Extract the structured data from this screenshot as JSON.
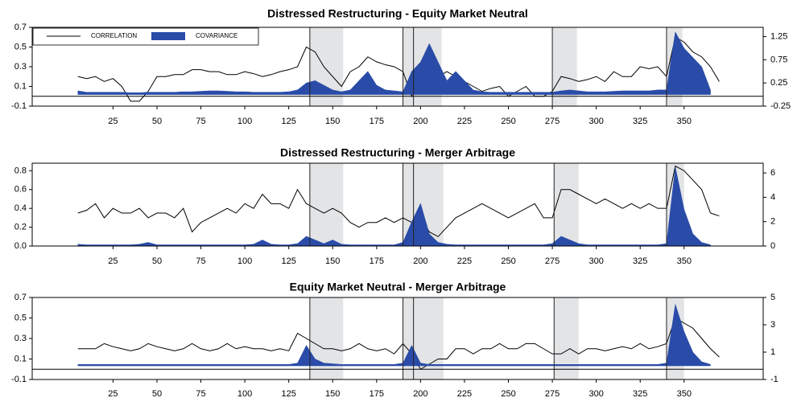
{
  "chart_data": [
    {
      "type": "line",
      "title": "Distressed Restructuring - Equity Market Neutral",
      "legend": "upper left",
      "x": [
        5,
        10,
        15,
        20,
        25,
        30,
        35,
        40,
        45,
        50,
        55,
        60,
        65,
        70,
        75,
        80,
        85,
        90,
        95,
        100,
        105,
        110,
        115,
        120,
        125,
        130,
        135,
        140,
        145,
        150,
        155,
        160,
        165,
        170,
        175,
        180,
        185,
        190,
        195,
        200,
        205,
        210,
        215,
        220,
        225,
        230,
        235,
        240,
        245,
        250,
        255,
        260,
        265,
        270,
        275,
        280,
        285,
        290,
        295,
        300,
        305,
        310,
        315,
        320,
        325,
        330,
        335,
        340,
        345,
        350,
        355,
        360,
        365,
        370
      ],
      "xlim": [
        -21,
        395
      ],
      "xticks": [
        25,
        50,
        75,
        100,
        125,
        150,
        175,
        200,
        225,
        250,
        275,
        300,
        325,
        350
      ],
      "ylim": [
        -0.1,
        0.7
      ],
      "yticks": [
        -0.1,
        0.1,
        0.3,
        0.5,
        0.7
      ],
      "y2lim": [
        -0.25,
        1.45
      ],
      "y2ticks": [
        -0.25,
        0.25,
        0.75,
        1.25
      ],
      "event_lines": [
        137,
        190,
        196,
        275,
        340
      ],
      "shaded_regions": [
        [
          137,
          156
        ],
        [
          190,
          212
        ],
        [
          275,
          289
        ],
        [
          340,
          349
        ]
      ],
      "series": [
        {
          "name": "CORRELATION",
          "color": "#000000",
          "values": [
            0.2,
            0.18,
            0.2,
            0.15,
            0.18,
            0.1,
            -0.05,
            -0.05,
            0.05,
            0.2,
            0.2,
            0.22,
            0.22,
            0.27,
            0.27,
            0.25,
            0.25,
            0.22,
            0.22,
            0.25,
            0.23,
            0.2,
            0.22,
            0.25,
            0.27,
            0.3,
            0.5,
            0.45,
            0.3,
            0.2,
            0.1,
            0.25,
            0.3,
            0.4,
            0.35,
            0.32,
            0.3,
            0.25,
            0.0,
            0.3,
            0.25,
            0.2,
            0.25,
            0.2,
            0.15,
            0.1,
            0.05,
            0.08,
            0.1,
            0.0,
            0.05,
            0.1,
            0.0,
            0.0,
            0.05,
            0.2,
            0.18,
            0.15,
            0.17,
            0.2,
            0.15,
            0.25,
            0.2,
            0.2,
            0.3,
            0.28,
            0.3,
            0.2,
            0.6,
            0.55,
            0.45,
            0.4,
            0.3,
            0.15
          ]
        },
        {
          "name": "COVARIANCE",
          "color": "#2a4ca8",
          "axis": "y2",
          "kind": "area",
          "values": [
            0.08,
            0.05,
            0.05,
            0.05,
            0.05,
            0.05,
            0.04,
            0.04,
            0.05,
            0.05,
            0.05,
            0.05,
            0.06,
            0.06,
            0.07,
            0.08,
            0.08,
            0.07,
            0.06,
            0.06,
            0.05,
            0.05,
            0.05,
            0.05,
            0.06,
            0.1,
            0.25,
            0.3,
            0.2,
            0.1,
            0.06,
            0.1,
            0.3,
            0.5,
            0.2,
            0.1,
            0.08,
            0.06,
            0.5,
            0.7,
            1.1,
            0.7,
            0.3,
            0.5,
            0.3,
            0.1,
            0.06,
            0.05,
            0.05,
            0.05,
            0.05,
            0.05,
            0.05,
            0.05,
            0.05,
            0.08,
            0.1,
            0.08,
            0.06,
            0.06,
            0.06,
            0.07,
            0.08,
            0.08,
            0.08,
            0.08,
            0.1,
            0.1,
            1.35,
            1.0,
            0.8,
            0.6,
            0.1,
            null
          ]
        }
      ]
    },
    {
      "type": "line",
      "title": "Distressed Restructuring - Merger Arbitrage",
      "x": [
        5,
        10,
        15,
        20,
        25,
        30,
        35,
        40,
        45,
        50,
        55,
        60,
        65,
        70,
        75,
        80,
        85,
        90,
        95,
        100,
        105,
        110,
        115,
        120,
        125,
        130,
        135,
        140,
        145,
        150,
        155,
        160,
        165,
        170,
        175,
        180,
        185,
        190,
        195,
        200,
        205,
        210,
        215,
        220,
        225,
        230,
        235,
        240,
        245,
        250,
        255,
        260,
        265,
        270,
        275,
        280,
        285,
        290,
        295,
        300,
        305,
        310,
        315,
        320,
        325,
        330,
        335,
        340,
        345,
        350,
        355,
        360,
        365,
        370
      ],
      "xlim": [
        -21,
        395
      ],
      "xticks": [
        25,
        50,
        75,
        100,
        125,
        150,
        175,
        200,
        225,
        250,
        275,
        300,
        325,
        350
      ],
      "ylim": [
        0,
        0.88
      ],
      "yticks": [
        {
          "value": 0,
          "label": "0.0"
        },
        0.2,
        0.4,
        0.6,
        0.8
      ],
      "y2lim": [
        0,
        6.8
      ],
      "y2ticks": [
        0,
        2,
        4,
        6
      ],
      "event_lines": [
        137,
        190,
        196,
        276,
        340
      ],
      "shaded_regions": [
        [
          137,
          156
        ],
        [
          190,
          213
        ],
        [
          276,
          290
        ],
        [
          340,
          350
        ]
      ],
      "series": [
        {
          "color": "#000000",
          "values": [
            0.35,
            0.38,
            0.45,
            0.3,
            0.4,
            0.35,
            0.35,
            0.4,
            0.3,
            0.35,
            0.35,
            0.3,
            0.4,
            0.15,
            0.25,
            0.3,
            0.35,
            0.4,
            0.35,
            0.45,
            0.4,
            0.55,
            0.45,
            0.45,
            0.4,
            0.6,
            0.45,
            0.4,
            0.35,
            0.4,
            0.35,
            0.25,
            0.2,
            0.25,
            0.25,
            0.3,
            0.25,
            0.3,
            0.25,
            0.3,
            0.15,
            0.1,
            0.2,
            0.3,
            0.35,
            0.4,
            0.45,
            0.4,
            0.35,
            0.3,
            0.35,
            0.4,
            0.45,
            0.3,
            0.3,
            0.6,
            0.6,
            0.55,
            0.5,
            0.45,
            0.5,
            0.45,
            0.4,
            0.45,
            0.4,
            0.45,
            0.4,
            0.4,
            0.85,
            0.8,
            0.7,
            0.6,
            0.35,
            0.32
          ]
        },
        {
          "color": "#2a4ca8",
          "axis": "y2",
          "kind": "area",
          "values": [
            0.15,
            0.1,
            0.1,
            0.1,
            0.1,
            0.1,
            0.1,
            0.15,
            0.3,
            0.1,
            0.1,
            0.1,
            0.1,
            0.1,
            0.1,
            0.1,
            0.1,
            0.1,
            0.1,
            0.1,
            0.15,
            0.5,
            0.15,
            0.1,
            0.1,
            0.2,
            0.8,
            0.5,
            0.2,
            0.5,
            0.15,
            0.1,
            0.1,
            0.1,
            0.1,
            0.1,
            0.1,
            0.3,
            2.0,
            3.5,
            1.0,
            0.3,
            0.15,
            0.1,
            0.1,
            0.1,
            0.1,
            0.1,
            0.1,
            0.1,
            0.1,
            0.1,
            0.1,
            0.1,
            0.2,
            0.8,
            0.5,
            0.2,
            0.1,
            0.1,
            0.1,
            0.1,
            0.1,
            0.1,
            0.1,
            0.1,
            0.1,
            0.2,
            6.5,
            3.0,
            1.0,
            0.3,
            0.1,
            null
          ]
        }
      ]
    },
    {
      "type": "line",
      "title": "Equity Market Neutral - Merger Arbitrage",
      "x": [
        5,
        10,
        15,
        20,
        25,
        30,
        35,
        40,
        45,
        50,
        55,
        60,
        65,
        70,
        75,
        80,
        85,
        90,
        95,
        100,
        105,
        110,
        115,
        120,
        125,
        130,
        135,
        140,
        145,
        150,
        155,
        160,
        165,
        170,
        175,
        180,
        185,
        190,
        195,
        200,
        205,
        210,
        215,
        220,
        225,
        230,
        235,
        240,
        245,
        250,
        255,
        260,
        265,
        270,
        275,
        280,
        285,
        290,
        295,
        300,
        305,
        310,
        315,
        320,
        325,
        330,
        335,
        340,
        345,
        350,
        355,
        360,
        365,
        370
      ],
      "xlim": [
        -21,
        395
      ],
      "xticks": [
        25,
        50,
        75,
        100,
        125,
        150,
        175,
        200,
        225,
        250,
        275,
        300,
        325,
        350
      ],
      "ylim": [
        -0.1,
        0.7
      ],
      "yticks": [
        -0.1,
        0.1,
        0.3,
        0.5,
        0.7
      ],
      "y2lim": [
        -1,
        5
      ],
      "y2ticks": [
        -1,
        1,
        3,
        5
      ],
      "event_lines": [
        137,
        190,
        196,
        276,
        340
      ],
      "shaded_regions": [
        [
          137,
          156
        ],
        [
          190,
          213
        ],
        [
          276,
          290
        ],
        [
          340,
          350
        ]
      ],
      "series": [
        {
          "color": "#000000",
          "values": [
            0.2,
            0.2,
            0.2,
            0.25,
            0.22,
            0.2,
            0.18,
            0.2,
            0.25,
            0.22,
            0.2,
            0.18,
            0.2,
            0.25,
            0.2,
            0.18,
            0.2,
            0.25,
            0.2,
            0.22,
            0.2,
            0.2,
            0.18,
            0.2,
            0.18,
            0.35,
            0.3,
            0.25,
            0.2,
            0.2,
            0.18,
            0.2,
            0.25,
            0.2,
            0.18,
            0.2,
            0.15,
            0.25,
            0.15,
            0.0,
            0.05,
            0.1,
            0.1,
            0.2,
            0.2,
            0.15,
            0.2,
            0.2,
            0.25,
            0.2,
            0.2,
            0.25,
            0.25,
            0.2,
            0.15,
            0.15,
            0.2,
            0.15,
            0.2,
            0.2,
            0.18,
            0.2,
            0.22,
            0.2,
            0.25,
            0.2,
            0.22,
            0.25,
            0.5,
            0.45,
            0.4,
            0.3,
            0.2,
            0.12
          ]
        },
        {
          "color": "#2a4ca8",
          "axis": "y2",
          "kind": "area",
          "values": [
            0.1,
            0.1,
            0.1,
            0.1,
            0.1,
            0.1,
            0.1,
            0.1,
            0.1,
            0.1,
            0.1,
            0.1,
            0.1,
            0.1,
            0.1,
            0.1,
            0.1,
            0.1,
            0.1,
            0.1,
            0.1,
            0.1,
            0.1,
            0.1,
            0.1,
            0.2,
            1.5,
            0.5,
            0.2,
            0.15,
            0.1,
            0.1,
            0.1,
            0.1,
            0.1,
            0.1,
            0.1,
            0.2,
            1.5,
            0.2,
            0.1,
            0.1,
            0.1,
            0.1,
            0.1,
            0.1,
            0.1,
            0.1,
            0.1,
            0.1,
            0.1,
            0.1,
            0.1,
            0.1,
            0.1,
            0.1,
            0.1,
            0.1,
            0.1,
            0.1,
            0.1,
            0.1,
            0.1,
            0.1,
            0.1,
            0.1,
            0.1,
            0.2,
            4.5,
            2.5,
            1.0,
            0.3,
            0.1,
            null
          ]
        }
      ]
    }
  ]
}
